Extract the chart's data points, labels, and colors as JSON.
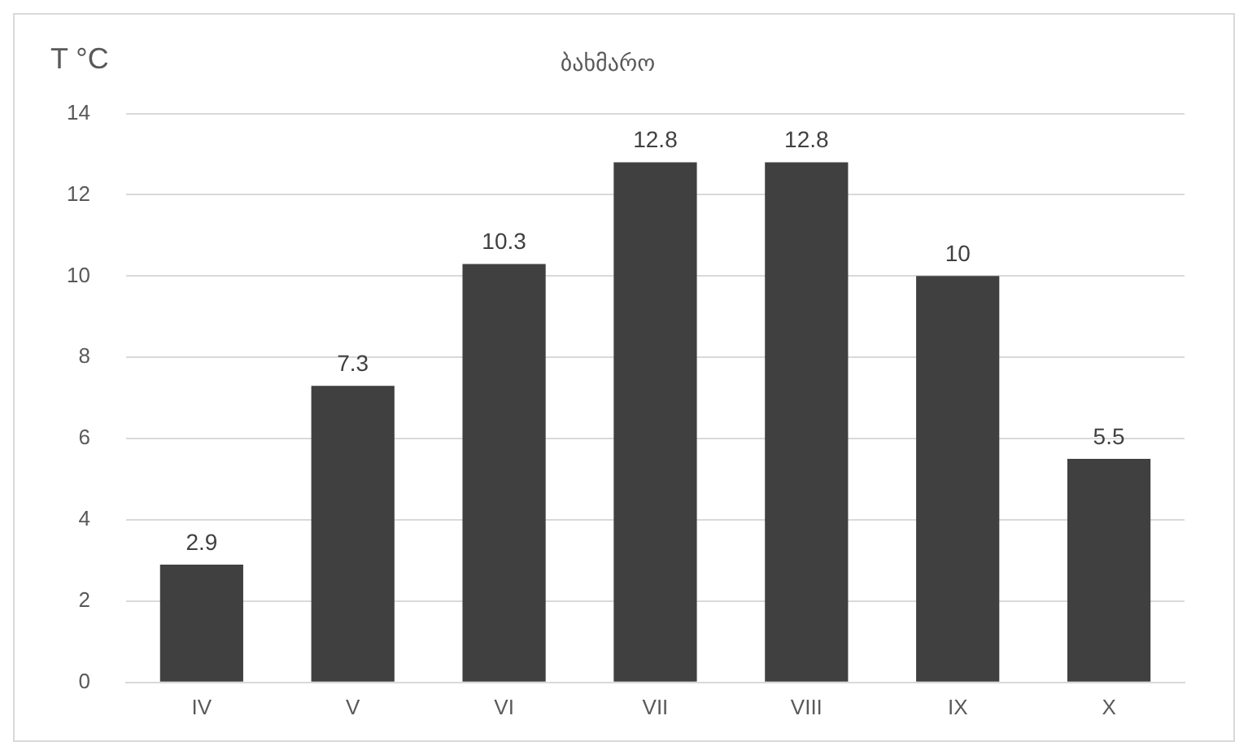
{
  "chart_data": {
    "type": "bar",
    "title": "ბახმარო",
    "ylabel": "T °C",
    "categories": [
      "IV",
      "V",
      "VI",
      "VII",
      "VIII",
      "IX",
      "X"
    ],
    "values": [
      2.9,
      7.3,
      10.3,
      12.8,
      12.8,
      10,
      5.5
    ],
    "color": "#404040",
    "ylim": [
      0,
      14
    ],
    "yticks": [
      0,
      2,
      4,
      6,
      8,
      10,
      12,
      14
    ],
    "grid": "y",
    "data_labels": true,
    "legend": false
  }
}
